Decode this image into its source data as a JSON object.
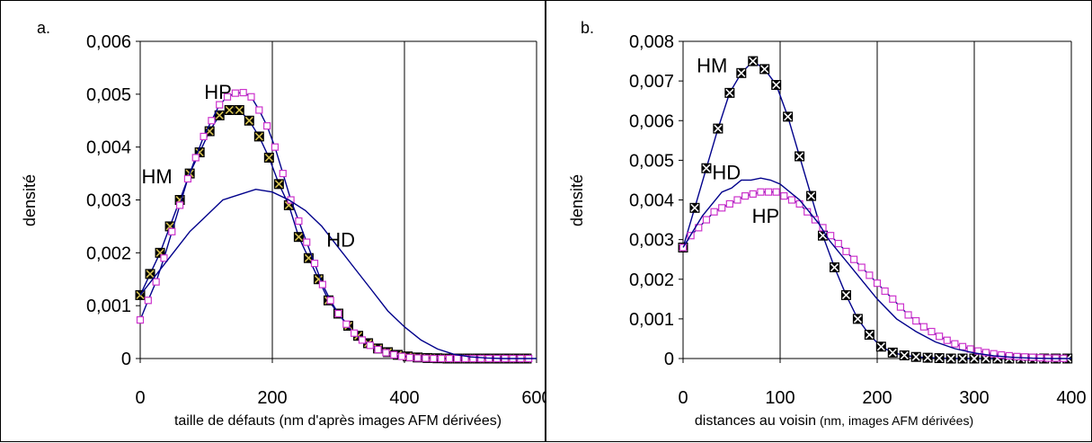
{
  "chart_data": [
    {
      "panel_label": "a.",
      "type": "line",
      "xlabel_main": "taille de défauts (nm d'après images AFM dérivées)",
      "xlabel_paren": "",
      "ylabel": "densité",
      "xlim": [
        0,
        600
      ],
      "ylim": [
        0,
        0.006
      ],
      "xticks": [
        0,
        200,
        400,
        600
      ],
      "xtick_labels": [
        "0",
        "200",
        "400",
        "600"
      ],
      "yticks": [
        0,
        0.001,
        0.002,
        0.003,
        0.004,
        0.005,
        0.006
      ],
      "ytick_labels": [
        "0",
        "0,001",
        "0,002",
        "0,003",
        "0,004",
        "0,005",
        "0,006"
      ],
      "grid": "vertical",
      "colors": {
        "curve": "#00008b",
        "hp_marker": "#cc33cc",
        "hm_marker": "#000000",
        "hm_cross": "#d4c050"
      },
      "series": [
        {
          "name": "HM",
          "marker": "x-square",
          "x": [
            0,
            15,
            30,
            45,
            60,
            75,
            90,
            105,
            120,
            135,
            150,
            165,
            180,
            195,
            210,
            225,
            240,
            255,
            270,
            285,
            300,
            315,
            330,
            345,
            360,
            375,
            390,
            405,
            420,
            435,
            450,
            465,
            480,
            495,
            510,
            525,
            540,
            555,
            570,
            585
          ],
          "y": [
            0.0012,
            0.0016,
            0.002,
            0.0025,
            0.003,
            0.0035,
            0.0039,
            0.0043,
            0.0046,
            0.0047,
            0.0047,
            0.0045,
            0.0042,
            0.0038,
            0.0033,
            0.0029,
            0.0023,
            0.0019,
            0.0015,
            0.0011,
            0.00085,
            0.00062,
            0.00043,
            0.00029,
            0.00019,
            0.00012,
            7e-05,
            4e-05,
            2e-05,
            1e-05,
            5e-06,
            0,
            0,
            0,
            0,
            0,
            0,
            0,
            0,
            0
          ]
        },
        {
          "name": "HP",
          "marker": "square",
          "x": [
            0,
            12,
            24,
            36,
            48,
            60,
            72,
            84,
            96,
            108,
            120,
            132,
            144,
            156,
            168,
            180,
            192,
            204,
            216,
            228,
            240,
            252,
            264,
            276,
            288,
            300,
            312,
            324,
            336,
            348,
            360,
            372,
            384,
            396,
            408,
            420,
            432,
            444,
            456,
            468,
            480,
            492,
            504,
            516,
            528,
            540,
            552,
            564,
            576,
            588
          ],
          "y": [
            0.00073,
            0.0011,
            0.00145,
            0.0019,
            0.0024,
            0.0029,
            0.0034,
            0.0038,
            0.0042,
            0.0045,
            0.0048,
            0.00495,
            0.00502,
            0.00503,
            0.00495,
            0.0047,
            0.0044,
            0.004,
            0.0035,
            0.003,
            0.0026,
            0.0022,
            0.0018,
            0.0014,
            0.0011,
            0.00085,
            0.00065,
            0.00048,
            0.00035,
            0.00025,
            0.00017,
            0.00011,
            7e-05,
            4e-05,
            2e-05,
            1e-05,
            5e-06,
            0,
            0,
            0,
            0,
            0,
            0,
            0,
            0,
            0,
            0,
            0,
            0,
            0
          ]
        },
        {
          "name": "HD",
          "marker": "none",
          "x": [
            0,
            25,
            50,
            75,
            100,
            125,
            150,
            175,
            200,
            225,
            250,
            275,
            300,
            325,
            350,
            375,
            400,
            425,
            450,
            475,
            500,
            525,
            550,
            575,
            600
          ],
          "y": [
            0.0012,
            0.0016,
            0.002,
            0.0024,
            0.0027,
            0.003,
            0.0031,
            0.0032,
            0.00315,
            0.003,
            0.0028,
            0.0025,
            0.0021,
            0.0017,
            0.0013,
            0.0009,
            0.0006,
            0.00035,
            0.00018,
            8e-05,
            3e-05,
            1e-05,
            0,
            0,
            0
          ]
        }
      ],
      "annotations": [
        {
          "text": "HP",
          "x": 97,
          "y": 0.00505
        },
        {
          "text": "HM",
          "x": 2,
          "y": 0.00345
        },
        {
          "text": "HD",
          "x": 282,
          "y": 0.00225
        }
      ]
    },
    {
      "panel_label": "b.",
      "type": "line",
      "xlabel_main": "distances au  voisin",
      "xlabel_paren": " (nm, images AFM dérivées)",
      "ylabel": "densité",
      "xlim": [
        0,
        400
      ],
      "ylim": [
        0,
        0.008
      ],
      "xticks": [
        0,
        100,
        200,
        300,
        400
      ],
      "xtick_labels": [
        "0",
        "100",
        "200",
        "300",
        "400"
      ],
      "yticks": [
        0,
        0.001,
        0.002,
        0.003,
        0.004,
        0.005,
        0.006,
        0.007,
        0.008
      ],
      "ytick_labels": [
        "0",
        "0,001",
        "0,002",
        "0,003",
        "0,004",
        "0,005",
        "0,006",
        "0,007",
        "0,008"
      ],
      "grid": "vertical",
      "colors": {
        "curve": "#00008b",
        "hp_marker": "#cc33cc",
        "hm_marker": "#000000",
        "hm_cross": "#ffffff"
      },
      "series": [
        {
          "name": "HM",
          "marker": "x-square",
          "x": [
            0,
            12,
            24,
            36,
            48,
            60,
            72,
            84,
            96,
            108,
            120,
            132,
            144,
            156,
            168,
            180,
            192,
            204,
            216,
            228,
            240,
            252,
            264,
            276,
            288,
            300,
            312,
            324,
            336,
            348,
            360,
            372,
            384,
            396
          ],
          "y": [
            0.0028,
            0.0038,
            0.0048,
            0.0058,
            0.0067,
            0.0072,
            0.0075,
            0.0073,
            0.0069,
            0.0061,
            0.0051,
            0.0041,
            0.0031,
            0.0023,
            0.0016,
            0.001,
            0.0006,
            0.0003,
            0.00015,
            8e-05,
            4e-05,
            2e-05,
            1e-05,
            0,
            0,
            0,
            0,
            0,
            0,
            0,
            0,
            0,
            0,
            0
          ]
        },
        {
          "name": "HP",
          "marker": "square",
          "x": [
            0,
            8,
            16,
            24,
            32,
            40,
            48,
            56,
            64,
            72,
            80,
            88,
            96,
            104,
            112,
            120,
            128,
            136,
            144,
            152,
            160,
            168,
            176,
            184,
            192,
            200,
            208,
            216,
            224,
            232,
            240,
            248,
            256,
            264,
            272,
            280,
            288,
            296,
            304,
            312,
            320,
            328,
            336,
            344,
            352,
            360,
            368,
            376,
            384,
            392
          ],
          "y": [
            0.0028,
            0.0031,
            0.0033,
            0.0035,
            0.0037,
            0.0038,
            0.0039,
            0.004,
            0.0041,
            0.00415,
            0.0042,
            0.0042,
            0.0042,
            0.0041,
            0.004,
            0.0039,
            0.0037,
            0.0035,
            0.0033,
            0.0031,
            0.0029,
            0.0027,
            0.0025,
            0.0023,
            0.0021,
            0.0019,
            0.0017,
            0.0015,
            0.0013,
            0.0011,
            0.00095,
            0.0008,
            0.00068,
            0.00056,
            0.00046,
            0.00037,
            0.0003,
            0.00024,
            0.00019,
            0.00015,
            0.00012,
            9e-05,
            7e-05,
            5e-05,
            4e-05,
            3e-05,
            2e-05,
            1e-05,
            1e-05,
            5e-06
          ]
        },
        {
          "name": "HD",
          "marker": "none",
          "x": [
            0,
            10,
            20,
            30,
            40,
            50,
            60,
            70,
            80,
            90,
            100,
            110,
            120,
            130,
            140,
            150,
            160,
            170,
            180,
            190,
            200,
            220,
            240,
            260,
            280,
            300,
            320,
            340,
            360,
            380,
            400
          ],
          "y": [
            0.0028,
            0.0032,
            0.0036,
            0.0039,
            0.0042,
            0.0043,
            0.0045,
            0.0045,
            0.00455,
            0.0045,
            0.0044,
            0.0042,
            0.004,
            0.0037,
            0.0034,
            0.003,
            0.0027,
            0.0024,
            0.0021,
            0.0018,
            0.0015,
            0.001,
            0.00068,
            0.00042,
            0.00025,
            0.00014,
            7e-05,
            3e-05,
            1e-05,
            0,
            0
          ]
        }
      ],
      "annotations": [
        {
          "text": "HM",
          "x": 14,
          "y": 0.0074
        },
        {
          "text": "HD",
          "x": 30,
          "y": 0.0047
        },
        {
          "text": "HP",
          "x": 71,
          "y": 0.0036
        }
      ]
    }
  ]
}
